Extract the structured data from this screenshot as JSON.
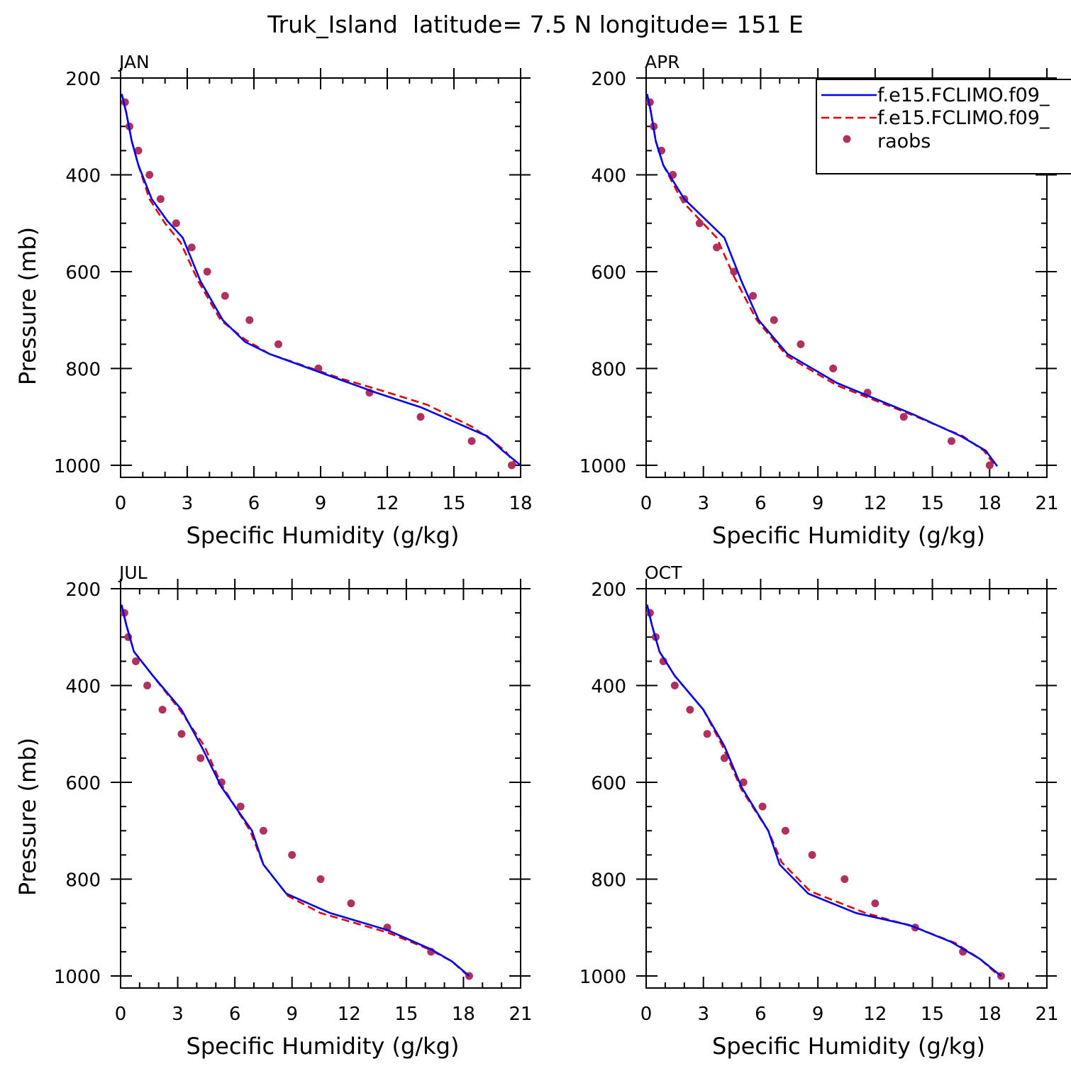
{
  "figure_title": "Truk_Island  latitude= 7.5 N longitude= 151 E",
  "colors": {
    "model1": "#0000ee",
    "model2": "#e00000",
    "obs": "#b03060"
  },
  "legend": {
    "entries": [
      "f.e15.FCLIMO.f09_",
      "f.e15.FCLIMO.f09_",
      "raobs"
    ]
  },
  "chart_data": [
    {
      "type": "line",
      "title": "JAN",
      "xlabel": "Specific Humidity (g/kg)",
      "ylabel": "Pressure (mb)",
      "xlim": [
        0,
        18
      ],
      "ylim": [
        1000,
        200
      ],
      "xticks": [
        0,
        3,
        6,
        9,
        12,
        15,
        18
      ],
      "yticks": [
        200,
        400,
        600,
        800,
        1000
      ],
      "series": [
        {
          "name": "f.e15.FCLIMO.f09_",
          "style": "solid",
          "x": [
            0.05,
            0.25,
            0.5,
            0.8,
            1.4,
            2.1,
            2.8,
            3.6,
            4.6,
            5.6,
            6.7,
            8.5,
            10.0,
            11.5,
            13.5,
            15.5,
            16.5,
            17.2,
            18.0
          ],
          "y": [
            233,
            270,
            330,
            380,
            450,
            495,
            530,
            620,
            700,
            745,
            770,
            800,
            825,
            850,
            880,
            920,
            940,
            970,
            1000
          ]
        },
        {
          "name": "f.e15.FCLIMO.f09_",
          "style": "dashed",
          "x": [
            0.05,
            0.25,
            0.5,
            0.8,
            1.3,
            2.0,
            2.7,
            3.5,
            4.5,
            5.6,
            6.7,
            8.6,
            10.0,
            11.7,
            13.8,
            15.8,
            16.6,
            17.3,
            17.8
          ],
          "y": [
            233,
            270,
            330,
            380,
            450,
            500,
            540,
            620,
            700,
            740,
            770,
            800,
            822,
            845,
            875,
            920,
            945,
            970,
            1000
          ]
        },
        {
          "name": "raobs",
          "style": "markers",
          "x": [
            0.2,
            0.4,
            0.8,
            1.3,
            1.8,
            2.5,
            3.2,
            3.9,
            4.7,
            5.8,
            7.1,
            8.9,
            11.2,
            13.5,
            15.8,
            17.6
          ],
          "y": [
            250,
            300,
            350,
            400,
            450,
            500,
            550,
            600,
            650,
            700,
            750,
            800,
            850,
            900,
            950,
            1000
          ]
        }
      ]
    },
    {
      "type": "line",
      "title": "APR",
      "xlabel": "Specific Humidity (g/kg)",
      "ylabel": "",
      "xlim": [
        0,
        21
      ],
      "ylim": [
        1000,
        200
      ],
      "xticks": [
        0,
        3,
        6,
        9,
        12,
        15,
        18,
        21
      ],
      "yticks": [
        200,
        400,
        600,
        800,
        1000
      ],
      "series": [
        {
          "name": "f.e15.FCLIMO.f09_",
          "style": "solid",
          "x": [
            0.05,
            0.25,
            0.5,
            0.9,
            2.0,
            4.1,
            5.0,
            5.9,
            7.4,
            10.0,
            14.0,
            16.5,
            17.8,
            18.4
          ],
          "y": [
            233,
            270,
            330,
            380,
            450,
            530,
            620,
            700,
            770,
            830,
            895,
            940,
            970,
            1002
          ]
        },
        {
          "name": "f.e15.FCLIMO.f09_",
          "style": "dashed",
          "x": [
            0.05,
            0.25,
            0.5,
            0.9,
            1.9,
            3.7,
            4.6,
            5.8,
            7.4,
            10.0,
            14.0,
            16.6,
            17.7,
            18.3
          ],
          "y": [
            233,
            270,
            330,
            380,
            455,
            530,
            610,
            700,
            775,
            835,
            897,
            940,
            970,
            1002
          ]
        },
        {
          "name": "raobs",
          "style": "markers",
          "x": [
            0.2,
            0.4,
            0.8,
            1.4,
            2.0,
            2.8,
            3.7,
            4.6,
            5.6,
            6.7,
            8.1,
            9.8,
            11.6,
            13.5,
            16.0,
            18.0
          ],
          "y": [
            250,
            300,
            350,
            400,
            450,
            500,
            550,
            600,
            650,
            700,
            750,
            800,
            850,
            900,
            950,
            1000
          ]
        }
      ]
    },
    {
      "type": "line",
      "title": "JUL",
      "xlabel": "Specific Humidity (g/kg)",
      "ylabel": "Pressure (mb)",
      "xlim": [
        0,
        21
      ],
      "ylim": [
        1000,
        200
      ],
      "xticks": [
        0,
        3,
        6,
        9,
        12,
        15,
        18,
        21
      ],
      "yticks": [
        200,
        400,
        600,
        800,
        1000
      ],
      "series": [
        {
          "name": "f.e15.FCLIMO.f09_",
          "style": "solid",
          "x": [
            0.05,
            0.3,
            0.7,
            1.7,
            3.2,
            4.3,
            5.3,
            6.9,
            7.5,
            8.7,
            11.0,
            14.0,
            16.3,
            17.4,
            18.3
          ],
          "y": [
            233,
            275,
            330,
            380,
            450,
            530,
            610,
            700,
            770,
            830,
            870,
            905,
            945,
            970,
            1000
          ]
        },
        {
          "name": "f.e15.FCLIMO.f09_",
          "style": "dashed",
          "x": [
            0.05,
            0.3,
            0.7,
            1.7,
            3.1,
            4.4,
            5.3,
            6.8,
            7.5,
            8.8,
            10.5,
            14.0,
            16.2,
            17.4,
            18.3
          ],
          "y": [
            233,
            275,
            330,
            380,
            450,
            525,
            605,
            700,
            770,
            835,
            870,
            910,
            945,
            970,
            1002
          ]
        },
        {
          "name": "raobs",
          "style": "markers",
          "x": [
            0.2,
            0.4,
            0.8,
            1.4,
            2.2,
            3.2,
            4.2,
            5.3,
            6.3,
            7.5,
            9.0,
            10.5,
            12.1,
            14.0,
            16.3,
            18.3
          ],
          "y": [
            250,
            300,
            350,
            400,
            450,
            500,
            550,
            600,
            650,
            700,
            750,
            800,
            850,
            900,
            950,
            1000
          ]
        }
      ]
    },
    {
      "type": "line",
      "title": "OCT",
      "xlabel": "Specific Humidity (g/kg)",
      "ylabel": "",
      "xlim": [
        0,
        21
      ],
      "ylim": [
        1000,
        200
      ],
      "xticks": [
        0,
        3,
        6,
        9,
        12,
        15,
        18,
        21
      ],
      "yticks": [
        200,
        400,
        600,
        800,
        1000
      ],
      "series": [
        {
          "name": "f.e15.FCLIMO.f09_",
          "style": "solid",
          "x": [
            0.05,
            0.3,
            0.7,
            1.5,
            3.0,
            4.1,
            5.0,
            6.4,
            7.0,
            8.5,
            11.0,
            13.8,
            16.0,
            17.5,
            18.6
          ],
          "y": [
            233,
            275,
            330,
            380,
            450,
            525,
            610,
            700,
            770,
            830,
            870,
            895,
            930,
            965,
            1000
          ]
        },
        {
          "name": "f.e15.FCLIMO.f09_",
          "style": "dashed",
          "x": [
            0.05,
            0.3,
            0.7,
            1.5,
            3.0,
            4.0,
            5.0,
            6.4,
            7.1,
            8.6,
            11.5,
            14.0,
            16.2,
            17.5,
            18.5
          ],
          "y": [
            233,
            275,
            330,
            380,
            450,
            525,
            615,
            700,
            765,
            825,
            870,
            898,
            932,
            965,
            1000
          ]
        },
        {
          "name": "raobs",
          "style": "markers",
          "x": [
            0.2,
            0.5,
            0.9,
            1.5,
            2.3,
            3.2,
            4.1,
            5.1,
            6.1,
            7.3,
            8.7,
            10.4,
            12.0,
            14.1,
            16.6,
            18.6
          ],
          "y": [
            250,
            300,
            350,
            400,
            450,
            500,
            550,
            600,
            650,
            700,
            750,
            800,
            850,
            900,
            950,
            1000
          ]
        }
      ]
    }
  ]
}
